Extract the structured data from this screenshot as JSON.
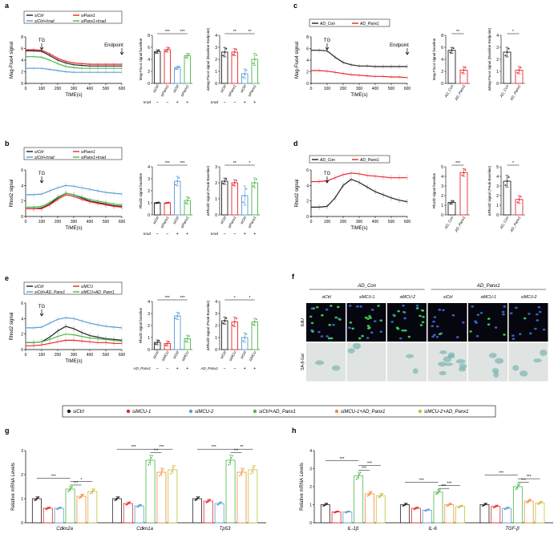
{
  "panels": {
    "a": {
      "label": "a",
      "legend": [
        "siCtrl",
        "siPanx1",
        "siCtrl+Irrad",
        "siPanx1+Irrad"
      ],
      "ylabel": "Mag-Fluo4 signal",
      "xlabel": "TIME(s)",
      "annot_tg": "TG",
      "annot_end": "Endpoint",
      "bar1_ylabel": "Mag-Fluo4 signal baseline",
      "bar2_ylabel": "ΔMag-Fluo4 signal (Baseline-Endpoint)",
      "irrad_label": "Irrad",
      "irrad_signs": [
        "–",
        "–",
        "+",
        "+"
      ],
      "bar_categories": [
        "siCtrl",
        "siPanx1",
        "siCtrl",
        "siPanx1"
      ],
      "sig1": [
        "***",
        "***"
      ],
      "sig2": [
        "**",
        "**"
      ]
    },
    "b": {
      "label": "b",
      "legend": [
        "siCtrl",
        "siPanx1",
        "siCtrl+Irrad",
        "siPanx1+Irrad"
      ],
      "ylabel": "Rhod2 signal",
      "xlabel": "TIME(s)",
      "annot_tg": "TG",
      "bar1_ylabel": "Rhod2 signal baseline",
      "bar2_ylabel": "ΔRhod2 signal (Peak-Baseline)",
      "irrad_label": "Irrad",
      "irrad_signs": [
        "–",
        "–",
        "+",
        "+"
      ],
      "bar_categories": [
        "siCtrl",
        "siPanx1",
        "siCtrl",
        "siPanx1"
      ],
      "sig1": [
        "***",
        "***"
      ],
      "sig2": [
        "**",
        "*"
      ]
    },
    "c": {
      "label": "c",
      "legend": [
        "AD_Con",
        "AD_Panx1"
      ],
      "ylabel": "Mag-Fluo4 signal",
      "xlabel": "TIME(s)",
      "annot_tg": "TG",
      "annot_end": "Endpoint",
      "bar1_ylabel": "Mag-Fluo4 signal baseline",
      "bar2_ylabel": "ΔMag-Fluo4 signal (Baseline-Endpoint)",
      "bar_categories": [
        "AD_Con",
        "AD_Panx1"
      ],
      "sig1": "**",
      "sig2": "*"
    },
    "d": {
      "label": "d",
      "legend": [
        "AD_Con",
        "AD_Panx1"
      ],
      "ylabel": "Rhod2 signal",
      "xlabel": "TIME(s)",
      "annot_tg": "TG",
      "bar1_ylabel": "Rhod2 signal baseline",
      "bar2_ylabel": "ΔRhod2 signal (Peak-Baseline)",
      "bar_categories": [
        "AD_Con",
        "AD_Panx1"
      ],
      "sig1": "***",
      "sig2": "*"
    },
    "e": {
      "label": "e",
      "legend": [
        "siCtrl",
        "siMCU",
        "siCtrl+AD_Panx1",
        "siMCU+AD_Panx1"
      ],
      "ylabel": "Rhod2 signal",
      "xlabel": "TIME(s)",
      "annot_tg": "TG",
      "bar1_ylabel": "Rhod2 signal baseline",
      "bar2_ylabel": "ΔRhod2 signal (Peak-Baseline)",
      "ad_label": "AD_Panx1",
      "ad_signs": [
        "–",
        "–",
        "+",
        "+"
      ],
      "bar_categories": [
        "siCtrl",
        "siMCU",
        "siCtrl",
        "siMCU"
      ],
      "sig1": [
        "***",
        "***"
      ],
      "sig2": [
        "*",
        "*"
      ]
    },
    "f": {
      "label": "f",
      "groups": [
        "AD_Con",
        "AD_Panx1"
      ],
      "columns": [
        "siCtrl",
        "siMCU-1",
        "siMCU-2",
        "siCtrl",
        "siMCU-1",
        "siMCU-2"
      ],
      "rows": [
        "EdU",
        "SA-β-Gal"
      ]
    },
    "g": {
      "label": "g",
      "ylabel": "Relative mRNA Levels",
      "genes": [
        "Cdkn2a",
        "Cdkn1a",
        "Tp53"
      ],
      "sig": [
        "***",
        "***",
        "*",
        "***",
        "***",
        "***",
        "***",
        "***",
        "**"
      ]
    },
    "h": {
      "label": "h",
      "ylabel": "Relative mRNA Levels",
      "genes": [
        "IL-1β",
        "IL-6",
        "TGF-β"
      ],
      "sig": [
        "***",
        "***",
        "***",
        "***",
        "***",
        "***",
        "***",
        "***",
        "***"
      ]
    }
  },
  "gh_legend": [
    "siCtrl",
    "siMCU-1",
    "siMCU-2",
    "siCtrl+AD_Panx1",
    "siMCU-1+AD_Panx1",
    "siMCU-2+AD_Panx1"
  ],
  "colors": {
    "black": "#231f20",
    "red": "#e8262b",
    "blue": "#5b9bd5",
    "green": "#4cb848",
    "orange": "#f58a3c",
    "olive": "#c7be3a"
  },
  "chart_data": [
    {
      "type": "line",
      "panel": "a",
      "x": [
        0,
        50,
        100,
        150,
        200,
        250,
        300,
        350,
        400,
        450,
        500,
        550,
        600
      ],
      "xlim": [
        0,
        600
      ],
      "ylim": [
        0,
        8
      ],
      "xticks": [
        0,
        100,
        200,
        300,
        400,
        500,
        600
      ],
      "yticks": [
        0,
        2,
        4,
        6,
        8
      ],
      "series": [
        {
          "name": "siCtrl",
          "color": "black",
          "values": [
            5.6,
            5.6,
            5.5,
            4.8,
            4.0,
            3.5,
            3.2,
            3.1,
            3.0,
            3.0,
            3.0,
            3.0,
            3.0
          ]
        },
        {
          "name": "siPanx1",
          "color": "red",
          "values": [
            5.8,
            5.8,
            5.7,
            5.1,
            4.3,
            3.8,
            3.5,
            3.4,
            3.3,
            3.3,
            3.3,
            3.3,
            3.3
          ]
        },
        {
          "name": "siCtrl+Irrad",
          "color": "blue",
          "values": [
            2.6,
            2.6,
            2.6,
            2.4,
            2.2,
            2.0,
            1.9,
            1.9,
            1.9,
            1.9,
            1.9,
            1.9,
            1.9
          ]
        },
        {
          "name": "siPanx1+Irrad",
          "color": "green",
          "values": [
            4.6,
            4.6,
            4.5,
            4.0,
            3.4,
            2.9,
            2.7,
            2.6,
            2.6,
            2.6,
            2.6,
            2.6,
            2.6
          ]
        }
      ]
    },
    {
      "type": "bar",
      "panel": "a-baseline",
      "ylim": [
        0,
        8
      ],
      "yticks": [
        0,
        2,
        4,
        6,
        8
      ],
      "values": [
        5.3,
        5.6,
        2.6,
        4.6
      ],
      "errors": [
        0.3,
        0.4,
        0.3,
        0.4
      ],
      "colors": [
        "black",
        "red",
        "blue",
        "green"
      ]
    },
    {
      "type": "bar",
      "panel": "a-delta",
      "ylim": [
        0,
        4
      ],
      "yticks": [
        0,
        1,
        2,
        3,
        4
      ],
      "values": [
        2.6,
        2.6,
        0.8,
        2.0
      ],
      "errors": [
        0.4,
        0.3,
        0.4,
        0.5
      ],
      "colors": [
        "black",
        "red",
        "blue",
        "green"
      ]
    },
    {
      "type": "line",
      "panel": "b",
      "x": [
        0,
        50,
        100,
        150,
        200,
        250,
        300,
        350,
        400,
        450,
        500,
        550,
        600
      ],
      "xlim": [
        0,
        600
      ],
      "ylim": [
        0,
        6
      ],
      "xticks": [
        0,
        100,
        200,
        300,
        400,
        500,
        600
      ],
      "yticks": [
        0,
        2,
        4,
        6
      ],
      "series": [
        {
          "name": "siCtrl",
          "color": "black",
          "values": [
            1.0,
            1.0,
            1.1,
            1.6,
            2.4,
            3.0,
            2.8,
            2.4,
            2.0,
            1.8,
            1.6,
            1.4,
            1.3
          ]
        },
        {
          "name": "siPanx1",
          "color": "red",
          "values": [
            1.0,
            1.0,
            1.0,
            1.5,
            2.2,
            2.8,
            2.6,
            2.2,
            1.9,
            1.7,
            1.5,
            1.3,
            1.2
          ]
        },
        {
          "name": "siCtrl+Irrad",
          "color": "blue",
          "values": [
            2.8,
            2.8,
            2.9,
            3.3,
            3.7,
            4.0,
            3.9,
            3.7,
            3.5,
            3.3,
            3.1,
            3.0,
            2.9
          ]
        },
        {
          "name": "siPanx1+Irrad",
          "color": "green",
          "values": [
            1.2,
            1.2,
            1.3,
            1.8,
            2.5,
            3.0,
            2.8,
            2.5,
            2.2,
            2.0,
            1.8,
            1.6,
            1.5
          ]
        }
      ]
    },
    {
      "type": "bar",
      "panel": "b-baseline",
      "ylim": [
        0,
        4
      ],
      "yticks": [
        0,
        1,
        2,
        3,
        4
      ],
      "values": [
        1.0,
        1.0,
        2.8,
        1.2
      ],
      "errors": [
        0.05,
        0.05,
        0.4,
        0.3
      ],
      "colors": [
        "black",
        "red",
        "blue",
        "green"
      ]
    },
    {
      "type": "bar",
      "panel": "b-delta",
      "ylim": [
        0,
        3
      ],
      "yticks": [
        0,
        1,
        2,
        3
      ],
      "values": [
        2.1,
        2.0,
        1.2,
        2.0
      ],
      "errors": [
        0.2,
        0.2,
        0.6,
        0.3
      ],
      "colors": [
        "black",
        "red",
        "blue",
        "green"
      ]
    },
    {
      "type": "line",
      "panel": "c",
      "x": [
        0,
        50,
        100,
        150,
        200,
        250,
        300,
        350,
        400,
        450,
        500,
        550,
        600
      ],
      "xlim": [
        0,
        600
      ],
      "ylim": [
        0,
        8
      ],
      "xticks": [
        0,
        100,
        200,
        300,
        400,
        500,
        600
      ],
      "yticks": [
        0,
        2,
        4,
        6,
        8
      ],
      "series": [
        {
          "name": "AD_Con",
          "color": "black",
          "values": [
            5.7,
            5.7,
            5.6,
            4.5,
            3.6,
            3.2,
            3.0,
            3.0,
            2.9,
            2.9,
            2.9,
            2.9,
            2.9
          ]
        },
        {
          "name": "AD_Panx1",
          "color": "red",
          "values": [
            2.2,
            2.2,
            2.1,
            1.9,
            1.7,
            1.5,
            1.4,
            1.3,
            1.2,
            1.2,
            1.1,
            1.1,
            1.0
          ]
        }
      ]
    },
    {
      "type": "bar",
      "panel": "c-baseline",
      "ylim": [
        0,
        8
      ],
      "yticks": [
        0,
        2,
        4,
        6,
        8
      ],
      "values": [
        5.5,
        2.2
      ],
      "errors": [
        0.5,
        0.6
      ],
      "colors": [
        "black",
        "red"
      ]
    },
    {
      "type": "bar",
      "panel": "c-delta",
      "ylim": [
        0,
        4
      ],
      "yticks": [
        0,
        1,
        2,
        3,
        4
      ],
      "values": [
        2.6,
        1.1
      ],
      "errors": [
        0.4,
        0.3
      ],
      "colors": [
        "black",
        "red"
      ]
    },
    {
      "type": "line",
      "panel": "d",
      "x": [
        0,
        50,
        100,
        150,
        200,
        250,
        300,
        350,
        400,
        450,
        500,
        550,
        600
      ],
      "xlim": [
        0,
        600
      ],
      "ylim": [
        0,
        6
      ],
      "xticks": [
        0,
        100,
        200,
        300,
        400,
        500,
        600
      ],
      "yticks": [
        0,
        2,
        4,
        6
      ],
      "series": [
        {
          "name": "AD_Con",
          "color": "black",
          "values": [
            1.2,
            1.2,
            1.3,
            2.4,
            4.0,
            4.8,
            4.4,
            3.8,
            3.2,
            2.8,
            2.4,
            2.1,
            1.9
          ]
        },
        {
          "name": "AD_Panx1",
          "color": "red",
          "values": [
            4.5,
            4.5,
            4.6,
            5.0,
            5.4,
            5.6,
            5.5,
            5.3,
            5.2,
            5.1,
            5.0,
            5.0,
            5.0
          ]
        }
      ]
    },
    {
      "type": "bar",
      "panel": "d-baseline",
      "ylim": [
        0,
        5
      ],
      "yticks": [
        0,
        1,
        2,
        3,
        4,
        5
      ],
      "values": [
        1.3,
        4.4
      ],
      "errors": [
        0.2,
        0.4
      ],
      "colors": [
        "black",
        "red"
      ]
    },
    {
      "type": "bar",
      "panel": "d-delta",
      "ylim": [
        0,
        5
      ],
      "yticks": [
        0,
        1,
        2,
        3,
        4,
        5
      ],
      "values": [
        3.5,
        1.6
      ],
      "errors": [
        0.6,
        0.4
      ],
      "colors": [
        "black",
        "red"
      ]
    },
    {
      "type": "line",
      "panel": "e",
      "x": [
        0,
        50,
        100,
        150,
        200,
        250,
        300,
        350,
        400,
        450,
        500,
        550,
        600
      ],
      "xlim": [
        0,
        600
      ],
      "ylim": [
        0,
        6
      ],
      "xticks": [
        0,
        100,
        200,
        300,
        400,
        500,
        600
      ],
      "yticks": [
        0,
        2,
        4,
        6
      ],
      "series": [
        {
          "name": "siCtrl",
          "color": "black",
          "values": [
            0.9,
            0.9,
            1.0,
            1.6,
            2.4,
            3.0,
            2.7,
            2.2,
            1.8,
            1.6,
            1.4,
            1.3,
            1.2
          ]
        },
        {
          "name": "siMCU",
          "color": "red",
          "values": [
            0.5,
            0.5,
            0.6,
            0.8,
            1.0,
            1.2,
            1.2,
            1.1,
            1.0,
            0.9,
            0.9,
            0.8,
            0.8
          ]
        },
        {
          "name": "siCtrl+AD_Panx1",
          "color": "blue",
          "values": [
            2.8,
            2.8,
            2.9,
            3.4,
            3.9,
            4.1,
            4.0,
            3.7,
            3.4,
            3.2,
            3.0,
            2.9,
            2.8
          ]
        },
        {
          "name": "siMCU+AD_Panx1",
          "color": "green",
          "values": [
            0.9,
            0.9,
            1.0,
            1.3,
            1.7,
            2.0,
            1.9,
            1.7,
            1.5,
            1.4,
            1.3,
            1.2,
            1.1
          ]
        }
      ]
    },
    {
      "type": "bar",
      "panel": "e-baseline",
      "ylim": [
        0,
        4
      ],
      "yticks": [
        0,
        1,
        2,
        3,
        4
      ],
      "values": [
        0.6,
        0.5,
        2.8,
        0.9
      ],
      "errors": [
        0.2,
        0.2,
        0.3,
        0.3
      ],
      "colors": [
        "black",
        "red",
        "blue",
        "green"
      ]
    },
    {
      "type": "bar",
      "panel": "e-delta",
      "ylim": [
        0,
        4
      ],
      "yticks": [
        0,
        1,
        2,
        3,
        4
      ],
      "values": [
        2.4,
        2.3,
        1.0,
        2.3
      ],
      "errors": [
        0.3,
        0.4,
        0.4,
        0.3
      ],
      "colors": [
        "black",
        "red",
        "blue",
        "green"
      ]
    },
    {
      "type": "bar",
      "panel": "g",
      "ylim": [
        0,
        3
      ],
      "yticks": [
        0,
        1,
        2,
        3
      ],
      "categories": [
        "Cdkn2a",
        "Cdkn1a",
        "Tp53"
      ],
      "series": [
        {
          "name": "siCtrl",
          "color": "black",
          "values": [
            1.0,
            1.0,
            1.0
          ]
        },
        {
          "name": "siMCU-1",
          "color": "red",
          "values": [
            0.6,
            0.8,
            0.9
          ]
        },
        {
          "name": "siMCU-2",
          "color": "blue",
          "values": [
            0.6,
            0.7,
            0.8
          ]
        },
        {
          "name": "siCtrl+AD_Panx1",
          "color": "green",
          "values": [
            1.4,
            2.6,
            2.6
          ]
        },
        {
          "name": "siMCU-1+AD_Panx1",
          "color": "orange",
          "values": [
            1.1,
            2.1,
            2.1
          ]
        },
        {
          "name": "siMCU-2+AD_Panx1",
          "color": "olive",
          "values": [
            1.3,
            2.2,
            2.2
          ]
        }
      ]
    },
    {
      "type": "bar",
      "panel": "h",
      "ylim": [
        0,
        4
      ],
      "yticks": [
        0,
        1,
        2,
        3,
        4
      ],
      "categories": [
        "IL-1β",
        "IL-6",
        "TGF-β"
      ],
      "series": [
        {
          "name": "siCtrl",
          "color": "black",
          "values": [
            1.0,
            1.0,
            1.0
          ]
        },
        {
          "name": "siMCU-1",
          "color": "red",
          "values": [
            0.6,
            0.8,
            0.9
          ]
        },
        {
          "name": "siMCU-2",
          "color": "blue",
          "values": [
            0.6,
            0.7,
            0.8
          ]
        },
        {
          "name": "siCtrl+AD_Panx1",
          "color": "green",
          "values": [
            2.6,
            1.7,
            2.0
          ]
        },
        {
          "name": "siMCU-1+AD_Panx1",
          "color": "orange",
          "values": [
            1.6,
            1.0,
            1.2
          ]
        },
        {
          "name": "siMCU-2+AD_Panx1",
          "color": "olive",
          "values": [
            1.5,
            0.9,
            1.1
          ]
        }
      ]
    }
  ]
}
